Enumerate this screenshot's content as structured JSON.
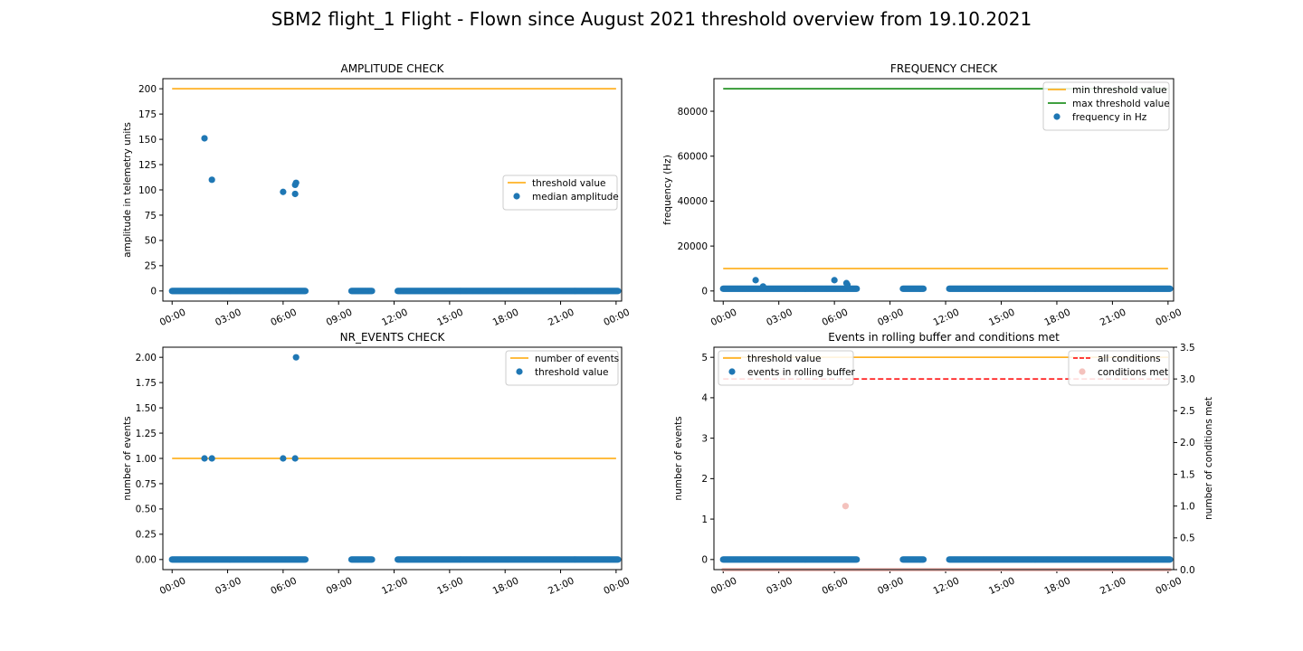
{
  "figure": {
    "title": "SBM2 flight_1 Flight - Flown since August 2021 threshold overview from 19.10.2021"
  },
  "colors": {
    "blue": "#1f77b4",
    "orange": "#ffa500",
    "green": "#008000",
    "red": "#ff0000",
    "pink": "#f4c2bd",
    "axis": "#000000"
  },
  "chart_data": [
    {
      "type": "scatter",
      "title": "AMPLITUDE CHECK",
      "xlabel": "",
      "ylabel": "amplitude in telemetry units",
      "xlim": [
        -0.5,
        24.3
      ],
      "ylim": [
        -10,
        210
      ],
      "x_ticks": [
        "00:00",
        "03:00",
        "06:00",
        "09:00",
        "12:00",
        "15:00",
        "18:00",
        "21:00",
        "00:00"
      ],
      "y_ticks": [
        0,
        25,
        50,
        75,
        100,
        125,
        150,
        175,
        200
      ],
      "y_tick_labels": [
        "0",
        "25",
        "50",
        "75",
        "100",
        "125",
        "150",
        "175",
        "200"
      ],
      "legend": {
        "position": "center-right",
        "entries": [
          {
            "label": "threshold value",
            "kind": "line",
            "color": "#ffa500"
          },
          {
            "label": "median amplitude",
            "kind": "marker",
            "color": "#1f77b4"
          }
        ]
      },
      "lines": [
        {
          "name": "threshold value",
          "x": [
            0,
            24
          ],
          "y": [
            200,
            200
          ],
          "color": "#ffa500"
        }
      ],
      "baseline": {
        "y": 0,
        "color": "#1f77b4",
        "segments": [
          [
            0,
            7.2
          ],
          [
            9.7,
            10.8
          ],
          [
            12.2,
            24.1
          ]
        ]
      },
      "points": [
        {
          "x": 1.75,
          "y": 151
        },
        {
          "x": 2.15,
          "y": 110
        },
        {
          "x": 6.0,
          "y": 98
        },
        {
          "x": 6.65,
          "y": 96
        },
        {
          "x": 6.65,
          "y": 105
        },
        {
          "x": 6.7,
          "y": 107
        }
      ]
    },
    {
      "type": "scatter",
      "title": "FREQUENCY CHECK",
      "xlabel": "",
      "ylabel": "frequency (Hz)",
      "xlim": [
        -0.5,
        24.3
      ],
      "ylim": [
        -4500,
        94500
      ],
      "x_ticks": [
        "00:00",
        "03:00",
        "06:00",
        "09:00",
        "12:00",
        "15:00",
        "18:00",
        "21:00",
        "00:00"
      ],
      "y_ticks": [
        0,
        20000,
        40000,
        60000,
        80000
      ],
      "y_tick_labels": [
        "0",
        "20000",
        "40000",
        "60000",
        "80000"
      ],
      "legend": {
        "position": "upper right",
        "entries": [
          {
            "label": "min threshold value",
            "kind": "line",
            "color": "#ffa500"
          },
          {
            "label": "max threshold value",
            "kind": "line",
            "color": "#008000"
          },
          {
            "label": "frequency in Hz",
            "kind": "marker",
            "color": "#1f77b4"
          }
        ]
      },
      "lines": [
        {
          "name": "min threshold value",
          "x": [
            0,
            24
          ],
          "y": [
            10000,
            10000
          ],
          "color": "#ffa500"
        },
        {
          "name": "max threshold value",
          "x": [
            0,
            24
          ],
          "y": [
            90000,
            90000
          ],
          "color": "#008000"
        }
      ],
      "baseline": {
        "y": 1000,
        "color": "#1f77b4",
        "segments": [
          [
            0,
            7.2
          ],
          [
            9.7,
            10.8
          ],
          [
            12.2,
            24.1
          ]
        ]
      },
      "points": [
        {
          "x": 1.75,
          "y": 4800
        },
        {
          "x": 2.15,
          "y": 2000
        },
        {
          "x": 6.0,
          "y": 4800
        },
        {
          "x": 6.65,
          "y": 3500
        },
        {
          "x": 6.7,
          "y": 2800
        }
      ]
    },
    {
      "type": "scatter",
      "title": "NR_EVENTS CHECK",
      "xlabel": "",
      "ylabel": "number of events",
      "xlim": [
        -0.5,
        24.3
      ],
      "ylim": [
        -0.1,
        2.1
      ],
      "x_ticks": [
        "00:00",
        "03:00",
        "06:00",
        "09:00",
        "12:00",
        "15:00",
        "18:00",
        "21:00",
        "00:00"
      ],
      "y_ticks": [
        0,
        0.25,
        0.5,
        0.75,
        1.0,
        1.25,
        1.5,
        1.75,
        2.0
      ],
      "y_tick_labels": [
        "0.00",
        "0.25",
        "0.50",
        "0.75",
        "1.00",
        "1.25",
        "1.50",
        "1.75",
        "2.00"
      ],
      "legend": {
        "position": "upper right",
        "entries": [
          {
            "label": "number of events",
            "kind": "line",
            "color": "#ffa500"
          },
          {
            "label": "threshold value",
            "kind": "marker",
            "color": "#1f77b4"
          }
        ]
      },
      "lines": [
        {
          "name": "number of events",
          "x": [
            0,
            24
          ],
          "y": [
            1,
            1
          ],
          "color": "#ffa500"
        }
      ],
      "baseline": {
        "y": 0,
        "color": "#1f77b4",
        "segments": [
          [
            0,
            7.2
          ],
          [
            9.7,
            10.8
          ],
          [
            12.2,
            24.1
          ]
        ]
      },
      "points": [
        {
          "x": 1.75,
          "y": 1
        },
        {
          "x": 2.15,
          "y": 1
        },
        {
          "x": 6.0,
          "y": 1
        },
        {
          "x": 6.65,
          "y": 1
        },
        {
          "x": 6.7,
          "y": 2
        }
      ]
    },
    {
      "type": "scatter",
      "title": "Events in rolling buffer and conditions met",
      "xlabel": "",
      "ylabel": "number of events",
      "ylabel_right": "number of conditions met",
      "xlim": [
        -0.5,
        24.3
      ],
      "ylim": [
        -0.25,
        5.25
      ],
      "ylim_right": [
        0,
        3.5
      ],
      "x_ticks": [
        "00:00",
        "03:00",
        "06:00",
        "09:00",
        "12:00",
        "15:00",
        "18:00",
        "21:00",
        "00:00"
      ],
      "y_ticks": [
        0,
        1,
        2,
        3,
        4,
        5
      ],
      "y_tick_labels": [
        "0",
        "1",
        "2",
        "3",
        "4",
        "5"
      ],
      "y_ticks_right": [
        0,
        0.5,
        1.0,
        1.5,
        2.0,
        2.5,
        3.0,
        3.5
      ],
      "y_tick_labels_right": [
        "0.0",
        "0.5",
        "1.0",
        "1.5",
        "2.0",
        "2.5",
        "3.0",
        "3.5"
      ],
      "legend": {
        "position": "upper left",
        "entries": [
          {
            "label": "threshold value",
            "kind": "line",
            "color": "#ffa500"
          },
          {
            "label": "events in rolling buffer",
            "kind": "marker",
            "color": "#1f77b4"
          }
        ]
      },
      "legend_right": {
        "position": "upper right",
        "entries": [
          {
            "label": "all conditions",
            "kind": "dashed",
            "color": "#ff0000"
          },
          {
            "label": "conditions met",
            "kind": "marker",
            "color": "#f4c2bd"
          }
        ]
      },
      "lines": [
        {
          "name": "threshold value",
          "x": [
            0,
            24
          ],
          "y": [
            5,
            5
          ],
          "color": "#ffa500"
        }
      ],
      "lines_right": [
        {
          "name": "all conditions",
          "x": [
            0,
            24
          ],
          "y": [
            3,
            3
          ],
          "color": "#ff0000",
          "dashed": true
        }
      ],
      "baseline": {
        "y": 0,
        "color": "#1f77b4",
        "segments": [
          [
            0,
            7.2
          ],
          [
            9.7,
            10.8
          ],
          [
            12.2,
            24.1
          ]
        ]
      },
      "baseline_right": {
        "y": 0,
        "color": "#f4c2bd",
        "segments": [
          [
            0,
            24.1
          ]
        ]
      },
      "points": [],
      "points_right": [
        {
          "x": 6.6,
          "y": 1,
          "color": "#f4c2bd"
        }
      ]
    }
  ]
}
